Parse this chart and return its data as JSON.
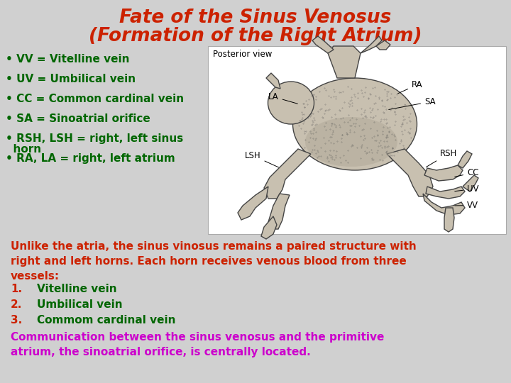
{
  "title_line1": "Fate of the Sinus Venosus",
  "title_line2": "(Formation of the Right Atrium)",
  "title_color": "#CC2200",
  "background_color": "#D0D0D0",
  "posterior_view_label": "Posterior view",
  "bullet_items": [
    {
      "bullet": "• VV = Vitelline vein",
      "color": "#006600"
    },
    {
      "bullet": "• UV = Umbilical vein",
      "color": "#006600"
    },
    {
      "bullet": "• CC = Common cardinal vein",
      "color": "#006600"
    },
    {
      "bullet": "• SA = Sinoatrial orifice",
      "color": "#006600"
    },
    {
      "bullet": "• RSH, LSH = right, left sinus\n  horn",
      "color": "#006600"
    },
    {
      "bullet": "• RA, LA = right, left atrium",
      "color": "#006600"
    }
  ],
  "para1_color": "#CC2200",
  "para1_text": "Unlike the atria, the sinus vinosus remains a paired structure with\nright and left horns. Each horn receives venous blood from three\nvessels:",
  "list_items": [
    {
      "num": "1.",
      "text": "Vitelline vein",
      "color": "#006600"
    },
    {
      "num": "2.",
      "text": "Umbilical vein",
      "color": "#006600"
    },
    {
      "num": "3.",
      "text": "Commom cardinal vein",
      "color": "#006600"
    }
  ],
  "para2_color": "#CC00CC",
  "para2_text": "Communication between the sinus venosus and the primitive\natrium, the sinoatrial orifice, is centrally located."
}
